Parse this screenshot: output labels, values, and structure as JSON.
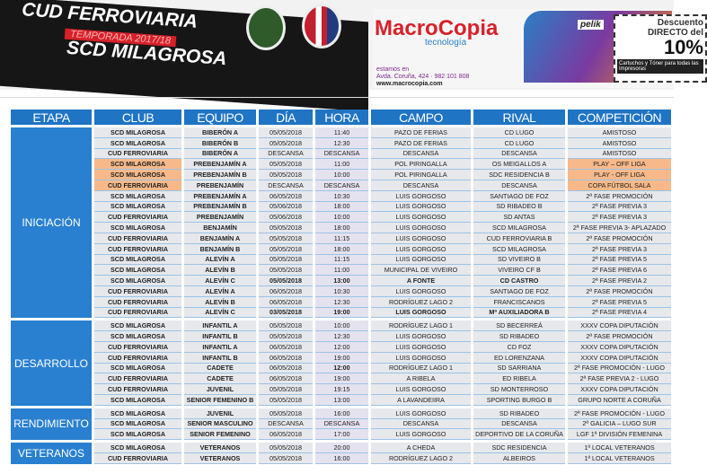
{
  "banner": {
    "line1": "CUD FERROVIARIA",
    "season": "TEMPORADA 2017/18",
    "line2": "SCD MILAGROSA"
  },
  "ad": {
    "brand": "MacroCopia",
    "sub": "tecnología",
    "estamos": "estamos en",
    "address": "Avda. Coruña, 424 · 982 101 808",
    "web": "www.macrocopia.com",
    "pelik": "pelik",
    "descuento": "Descuento",
    "directo": "DIRECTO del",
    "percent": "10%",
    "cartuchos": "Cartuchos y Tóner para todas las Impresoras"
  },
  "colors": {
    "header": "#1f74c4",
    "highlight": "#f7b98a",
    "row": "#e6e8ec"
  },
  "headers": [
    "ETAPA",
    "CLUB",
    "EQUIPO",
    "DÍA",
    "HORA",
    "CAMPO",
    "RIVAL",
    "COMPETICIÓN"
  ],
  "groups": [
    {
      "etapa": "INICIACIÓN",
      "rows": [
        [
          "SCD MILAGROSA",
          "BIBERÓN A",
          "05/05/2018",
          "11:40",
          "PAZO DE FERIAS",
          "CD LUGO",
          "AMISTOSO"
        ],
        [
          "SCD MILAGROSA",
          "BIBERÓN B",
          "05/05/2018",
          "12:30",
          "PAZO DE FERIAS",
          "CD LUGO",
          "AMISTOSO"
        ],
        [
          "CUD FERROVIARIA",
          "BIBERÓN A",
          "DESCANSA",
          "DESCANSA",
          "DESCANSA",
          "DESCANSA",
          "AMISTOSO"
        ],
        [
          "SCD MILAGROSA",
          "PREBENJAMÍN A",
          "05/05/2018",
          "11:00",
          "POL PIRINGALLA",
          "OS MEIGALLOS A",
          "PLAY – OFF LIGA"
        ],
        [
          "SCD MILAGROSA",
          "PREBENJAMÍN B",
          "05/05/2018",
          "10:00",
          "POL PIRINGALLA",
          "SDC RESIDENCIA B",
          "PLAY - OFF LIGA"
        ],
        [
          "CUD FERROVIARIA",
          "PREBENJAMÍN",
          "DESCANSA",
          "DESCANSA",
          "DESCANSA",
          "DESCANSA",
          "COPA FÚTBOL SALA"
        ],
        [
          "SCD MILAGROSA",
          "PREBENJAMÍN A",
          "06/05/2018",
          "10:30",
          "LUIS GORGOSO",
          "SANTIAGO DE FOZ",
          "2ª FASE PROMOCIÓN"
        ],
        [
          "SCD MILAGROSA",
          "PREBENJAMÍN B",
          "05/06/2018",
          "18:00",
          "LUIS GORGOSO",
          "SD RIBADEO B",
          "2ª FASE PREVIA 3"
        ],
        [
          "CUD FERROVIARIA",
          "PREBENJAMÍN",
          "05/06/2018",
          "10:00",
          "LUIS GORGOSO",
          "SD ANTAS",
          "2ª FASE PREVIA 3"
        ],
        [
          "SCD MILAGROSA",
          "BENJAMÍN",
          "05/05/2018",
          "18:00",
          "LUIS GORGOSO",
          "SCD MILAGROSA",
          "2ª FASE PREVIA 3- APLAZADO"
        ],
        [
          "CUD FERROVIARIA",
          "BENJAMÍN A",
          "05/05/2018",
          "11:15",
          "LUIS GORGOSO",
          "CUD FERROVIARIA B",
          "2ª FASE PROMOCIÓN"
        ],
        [
          "CUD FERROVIARIA",
          "BENJAMÍN B",
          "05/05/2018",
          "18:00",
          "LUIS GORGOSO",
          "SCD MILAGROSA",
          "2ª FASE PREVIA 3"
        ],
        [
          "SCD MILAGROSA",
          "ALEVÍN A",
          "05/05/2018",
          "11:15",
          "LUIS GORGOSO",
          "SD VIVEIRO B",
          "2ª FASE PREVIA 5"
        ],
        [
          "SCD MILAGROSA",
          "ALEVÍN B",
          "05/05/2018",
          "11:00",
          "MUNICIPAL DE VIVEIRO",
          "VIVEIRO CF B",
          "2ª FASE PREVIA 6"
        ],
        [
          "SCD MILAGROSA",
          "ALEVÍN C",
          "05/05/2018",
          "13:00",
          "A FONTE",
          "CD CASTRO",
          "2ª FASE PREVIA 2"
        ],
        [
          "CUD FERROVIARIA",
          "ALEVÍN A",
          "06/05/2018",
          "10:30",
          "LUIS GORGOSO",
          "SANTIAGO DE FOZ",
          "2ª FASE PROMOCIÓN"
        ],
        [
          "CUD FERROVIARIA",
          "ALEVÍN B",
          "06/05/2018",
          "12:30",
          "RODRÍGUEZ LAGO 2",
          "FRANCISCANOS",
          "2ª FASE PREVIA 5"
        ],
        [
          "CUD FERROVIARIA",
          "ALEVÍN C",
          "03/05/2018",
          "19:00",
          "LUIS GORGOSO",
          "Mª AUXILIADORA B",
          "2ª FASE PREVIA 4"
        ]
      ]
    },
    {
      "etapa": "DESARROLLO",
      "rows": [
        [
          "SCD MILAGROSA",
          "INFANTIL A",
          "05/05/2018",
          "10:00",
          "RODRÍGUEZ LAGO 1",
          "SD BECERREÁ",
          "XXXV COPA DIPUTACIÓN"
        ],
        [
          "SCD MILAGROSA",
          "INFANTIL B",
          "05/05/2018",
          "12:30",
          "LUIS GORGOSO",
          "SD RIBADEO",
          "2ª FASE PROMOCIÓN"
        ],
        [
          "CUD FERROVIARIA",
          "INFANTIL A",
          "06/05/2018",
          "12:00",
          "LUIS GORGOSO",
          "CD FOZ",
          "XXXV COPA DIPUTACIÓN"
        ],
        [
          "CUD FERROVIARIA",
          "INFANTIL B",
          "06/05/2018",
          "19:00",
          "LUIS GORGOSO",
          "ED LORENZANA",
          "XXXV COPA DIPUTACIÓN"
        ],
        [
          "SCD MILAGROSA",
          "CADETE",
          "06/05/2018",
          "12:00",
          "RODRÍGUEZ LAGO 1",
          "SD SARRIANA",
          "2ª FASE PROMOCIÓN - LUGO"
        ],
        [
          "CUD FERROVIARIA",
          "CADETE",
          "06/05/2018",
          "19:00",
          "A RIBELA",
          "ED RIBELA",
          "2ª FASE PREVIA 2 - LUGO"
        ],
        [
          "CUD FERROVIARIA",
          "JUVENIL",
          "05/05/2018",
          "19:15",
          "LUIS GORGOSO",
          "SD MONTERROSO",
          "XXXV COPA DIPUTACIÓN"
        ],
        [
          "SCD MILAGROSA",
          "SENIOR FEMENINO B",
          "05/05/2018",
          "13:00",
          "A LAVANDEIIRA",
          "SPORTING BURGO B",
          "GRUPO NORTE A CORUÑA"
        ]
      ]
    },
    {
      "etapa": "RENDIMIENTO",
      "rows": [
        [
          "SCD MILAGROSA",
          "JUVENIL",
          "05/05/2018",
          "16:00",
          "LUIS GORGOSO",
          "SD RIBADEO",
          "2ª FASE PROMOCIÓN - LUGO"
        ],
        [
          "SCD MILAGROSA",
          "SENIOR MASCULINO",
          "DESCANSA",
          "DESCANSA",
          "DESCANSA",
          "DESCANSA",
          "2ª GALICIA – LUGO SUR"
        ],
        [
          "SCD MILAGROSA",
          "SENIOR FEMENINO",
          "06/05/2018",
          "17:00",
          "LUIS GORGOSO",
          "DEPORTIVO DE LA CORUÑA",
          "LGF 1ª DIVISIÓN FEMENINA"
        ]
      ]
    },
    {
      "etapa": "VETERANOS",
      "rows": [
        [
          "SCD MILAGROSA",
          "VETERANOS",
          "05/05/2018",
          "20:00",
          "A CHEDA",
          "SDC RESIDENCIA",
          "1ª LOCAL VETERANOS"
        ],
        [
          "CUD FERROVIARIA",
          "VETERANOS",
          "05/05/2018",
          "16:00",
          "RODRÍGUEZ LAGO 2",
          "ALBEIROS",
          "1ª LOCAL VETERANOS"
        ]
      ]
    }
  ]
}
